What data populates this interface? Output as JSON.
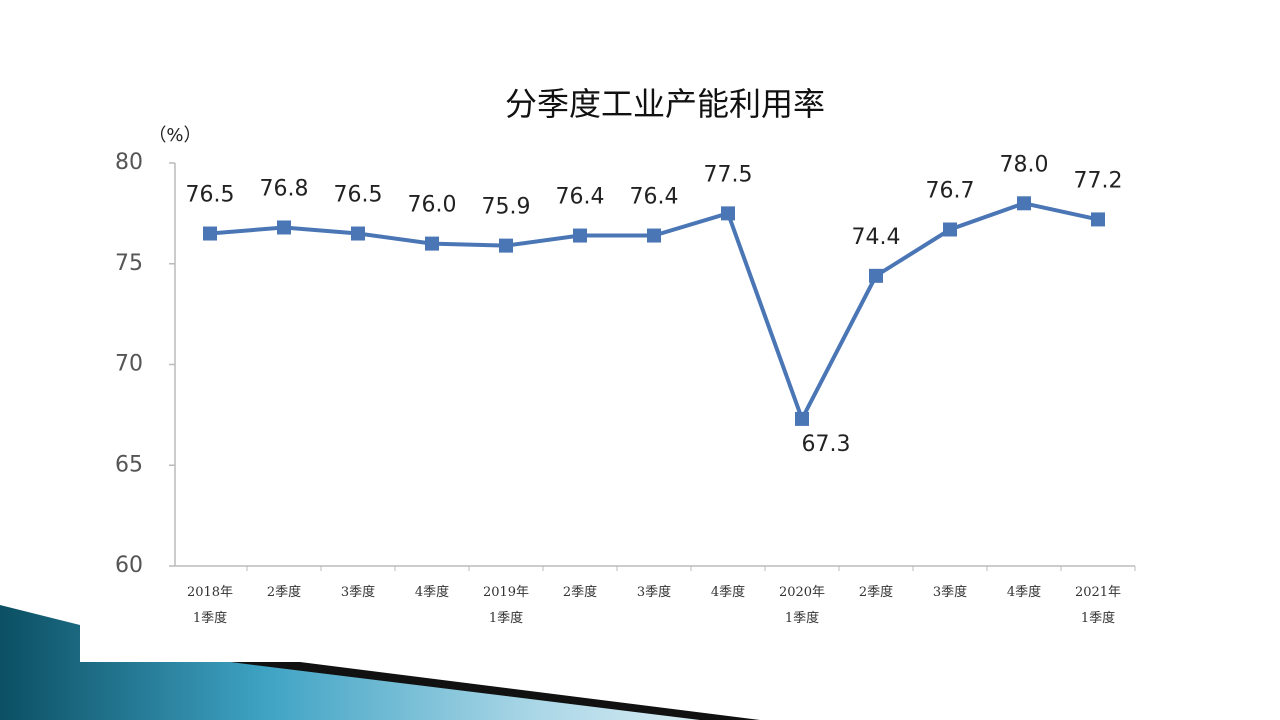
{
  "chart_data": {
    "type": "line",
    "title": "分季度工业产能利用率",
    "y_label": "（%）",
    "categories": [
      "2018年\n1季度",
      "2季度",
      "3季度",
      "4季度",
      "2019年\n1季度",
      "2季度",
      "3季度",
      "4季度",
      "2020年\n1季度",
      "2季度",
      "3季度",
      "4季度",
      "2021年\n1季度"
    ],
    "series": [
      {
        "name": "工业产能利用率",
        "color": "#4a76b5",
        "values": [
          76.5,
          76.8,
          76.5,
          76.0,
          75.9,
          76.4,
          76.4,
          77.5,
          67.3,
          74.4,
          76.7,
          78.0,
          77.2
        ],
        "value_labels": [
          "76.5",
          "76.8",
          "76.5",
          "76.0",
          "75.9",
          "76.4",
          "76.4",
          "77.5",
          "67.3",
          "74.4",
          "76.7",
          "78.0",
          "77.2"
        ]
      }
    ],
    "ylim": [
      60,
      80
    ],
    "yticks": [
      60,
      65,
      70,
      75,
      80
    ],
    "grid": false
  }
}
